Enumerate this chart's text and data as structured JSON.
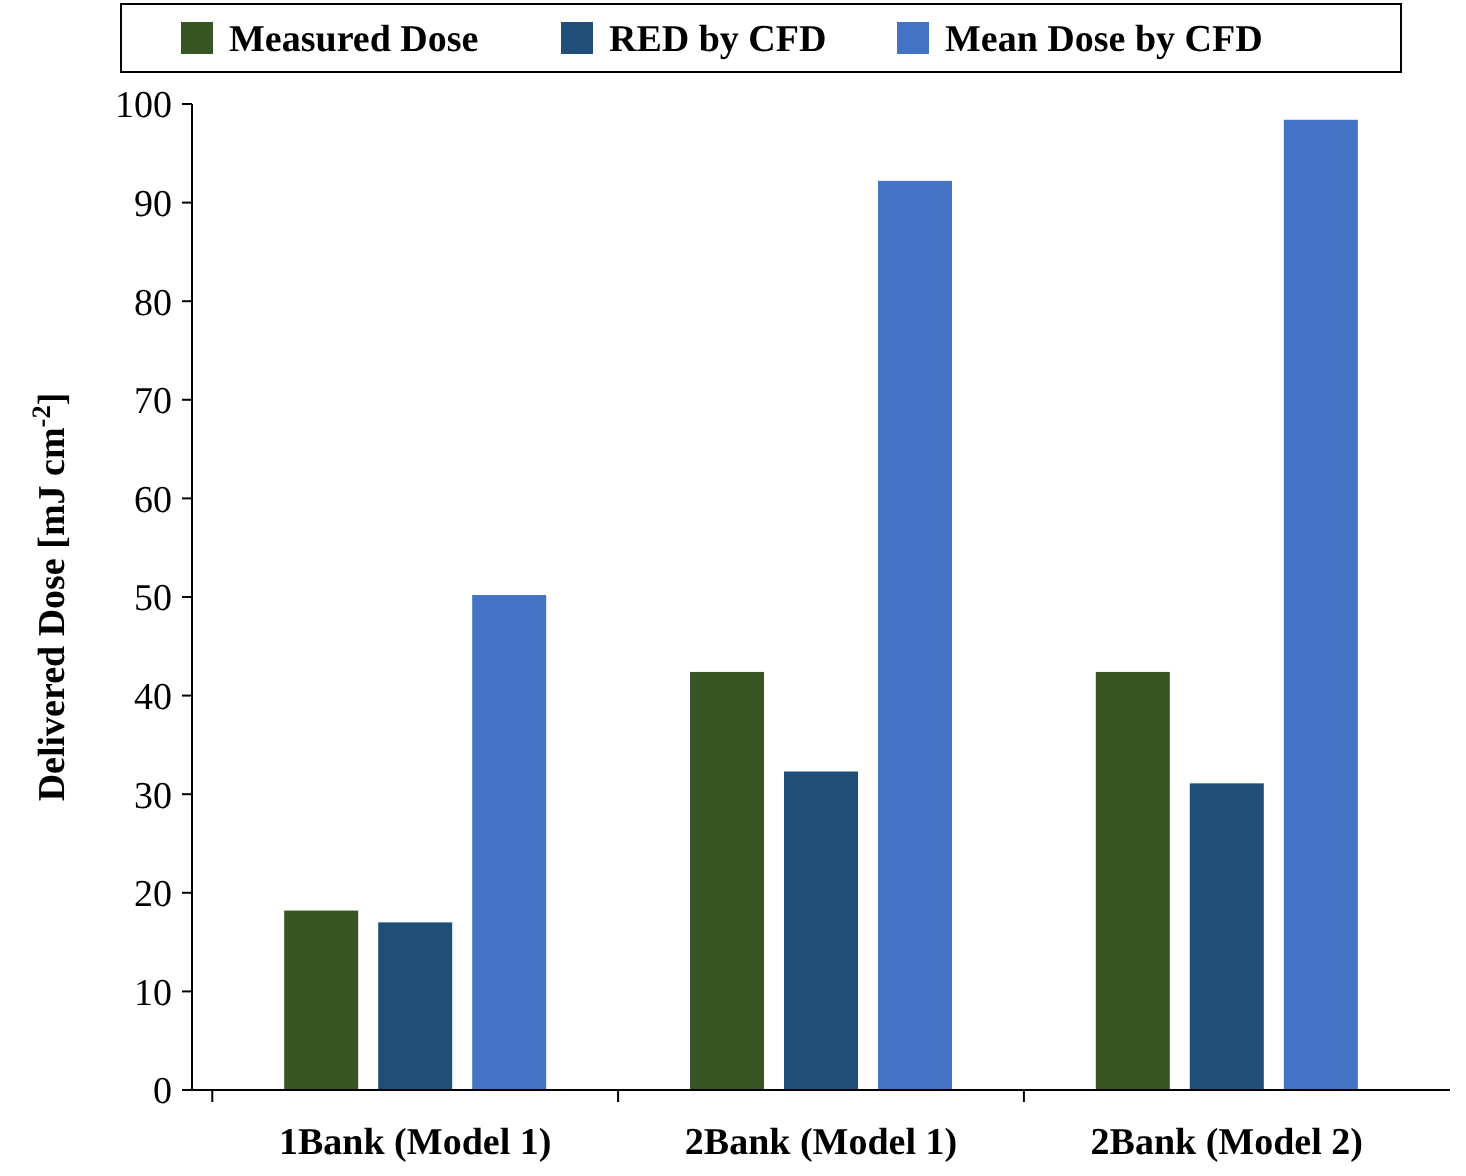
{
  "chart_data": {
    "type": "bar",
    "ylabel": "Delivered Dose [mJ cm$^{-2}$]",
    "categories": [
      "1Bank (Model 1)",
      "2Bank (Model 1)",
      "2Bank (Model 2)"
    ],
    "series": [
      {
        "name": "Measured Dose",
        "color": "#375623",
        "values": [
          18.2,
          42.4,
          42.4
        ]
      },
      {
        "name": "RED by CFD",
        "color": "#1f4e79",
        "values": [
          17.0,
          32.3,
          31.1
        ]
      },
      {
        "name": "Mean Dose by CFD",
        "color": "#4472c4",
        "values": [
          50.2,
          92.2,
          98.4
        ]
      }
    ],
    "ylim": [
      0,
      100
    ],
    "yticks": [
      0,
      10,
      20,
      30,
      40,
      50,
      60,
      70,
      80,
      90,
      100
    ],
    "grid": false,
    "legend": "top"
  }
}
